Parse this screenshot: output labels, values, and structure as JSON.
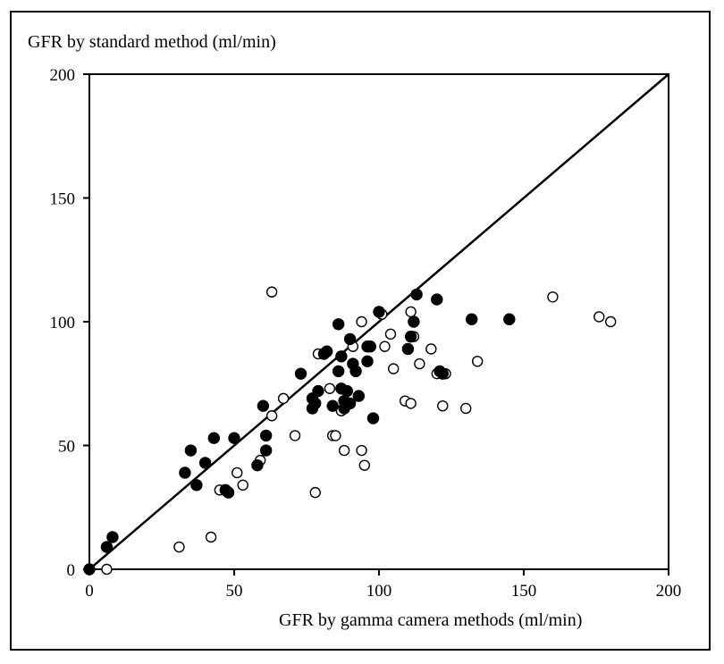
{
  "chart_data": {
    "type": "scatter",
    "title": "",
    "ylabel": "GFR by standard method (ml/min)",
    "xlabel": "GFR by gamma camera methods (ml/min)",
    "xlim": [
      0,
      200
    ],
    "ylim": [
      0,
      200
    ],
    "xticks": [
      "0",
      "50",
      "100",
      "150",
      "200"
    ],
    "yticks": [
      "0",
      "50",
      "100",
      "150",
      "200"
    ],
    "grid": false,
    "legend": "none",
    "identity_line": {
      "x": [
        0,
        200
      ],
      "y": [
        0,
        200
      ]
    },
    "series": [
      {
        "marker": "filled-circle",
        "points": [
          [
            0,
            0
          ],
          [
            6,
            9
          ],
          [
            8,
            13
          ],
          [
            33,
            39
          ],
          [
            35,
            48
          ],
          [
            37,
            34
          ],
          [
            40,
            43
          ],
          [
            43,
            53
          ],
          [
            47,
            32
          ],
          [
            48,
            31
          ],
          [
            50,
            53
          ],
          [
            58,
            42
          ],
          [
            60,
            66
          ],
          [
            61,
            54
          ],
          [
            61,
            48
          ],
          [
            73,
            79
          ],
          [
            77,
            65
          ],
          [
            77,
            69
          ],
          [
            78,
            67
          ],
          [
            79,
            72
          ],
          [
            81,
            87
          ],
          [
            82,
            88
          ],
          [
            84,
            66
          ],
          [
            86,
            99
          ],
          [
            86,
            80
          ],
          [
            87,
            86
          ],
          [
            87,
            73
          ],
          [
            88,
            68
          ],
          [
            88,
            65
          ],
          [
            89,
            72
          ],
          [
            90,
            93
          ],
          [
            90,
            67
          ],
          [
            91,
            83
          ],
          [
            92,
            80
          ],
          [
            93,
            70
          ],
          [
            96,
            90
          ],
          [
            96,
            84
          ],
          [
            97,
            90
          ],
          [
            98,
            61
          ],
          [
            100,
            104
          ],
          [
            110,
            89
          ],
          [
            111,
            94
          ],
          [
            112,
            100
          ],
          [
            113,
            111
          ],
          [
            120,
            109
          ],
          [
            121,
            80
          ],
          [
            122,
            79
          ],
          [
            132,
            101
          ],
          [
            145,
            101
          ]
        ]
      },
      {
        "marker": "open-circle",
        "points": [
          [
            6,
            0
          ],
          [
            31,
            9
          ],
          [
            42,
            13
          ],
          [
            45,
            32
          ],
          [
            51,
            39
          ],
          [
            53,
            34
          ],
          [
            59,
            44
          ],
          [
            63,
            62
          ],
          [
            63,
            112
          ],
          [
            67,
            69
          ],
          [
            71,
            54
          ],
          [
            78,
            31
          ],
          [
            79,
            87
          ],
          [
            83,
            73
          ],
          [
            84,
            54
          ],
          [
            85,
            54
          ],
          [
            87,
            64
          ],
          [
            88,
            48
          ],
          [
            91,
            90
          ],
          [
            94,
            48
          ],
          [
            94,
            100
          ],
          [
            95,
            42
          ],
          [
            101,
            103
          ],
          [
            102,
            90
          ],
          [
            104,
            95
          ],
          [
            105,
            81
          ],
          [
            109,
            68
          ],
          [
            111,
            67
          ],
          [
            111,
            104
          ],
          [
            112,
            94
          ],
          [
            114,
            83
          ],
          [
            118,
            89
          ],
          [
            120,
            79
          ],
          [
            122,
            66
          ],
          [
            123,
            79
          ],
          [
            130,
            65
          ],
          [
            134,
            84
          ],
          [
            160,
            110
          ],
          [
            176,
            102
          ],
          [
            180,
            100
          ]
        ]
      }
    ]
  }
}
